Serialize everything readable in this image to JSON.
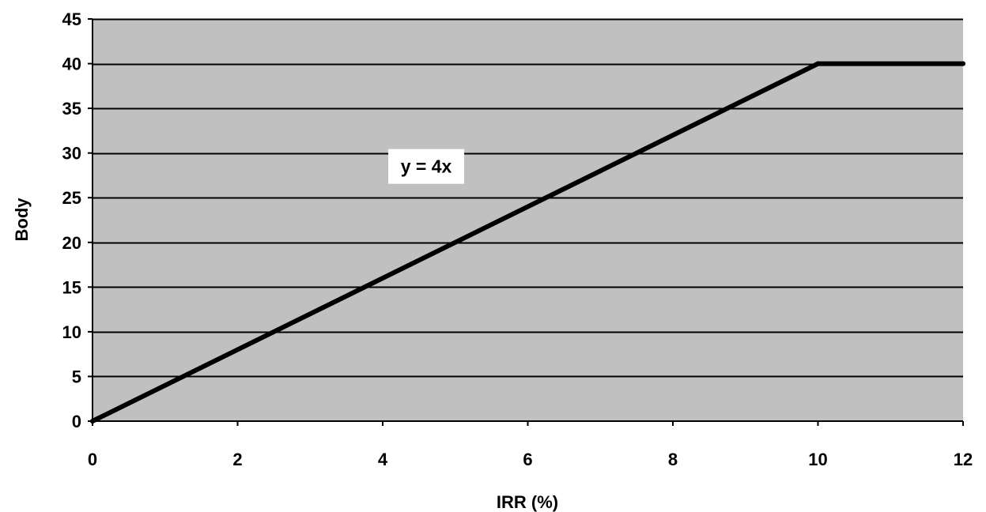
{
  "chart_data": {
    "type": "line",
    "title": "",
    "xlabel": "IRR (%)",
    "ylabel": "Body",
    "xlim": [
      0,
      12
    ],
    "ylim": [
      0,
      45
    ],
    "x_ticks": [
      0,
      2,
      4,
      6,
      8,
      10,
      12
    ],
    "y_ticks": [
      0,
      5,
      10,
      15,
      20,
      25,
      30,
      35,
      40,
      45
    ],
    "grid": "horizontal",
    "legend": "none",
    "series": [
      {
        "x": [
          0,
          10,
          12
        ],
        "y": [
          0,
          40,
          40
        ]
      }
    ],
    "annotations": [
      {
        "text": "y = 4x",
        "x": 4.6,
        "y": 28.5
      }
    ],
    "colors": {
      "plot_background": "#c0c0c0",
      "gridline": "#000000",
      "line": "#000000",
      "annotation_background": "#ffffff"
    }
  }
}
